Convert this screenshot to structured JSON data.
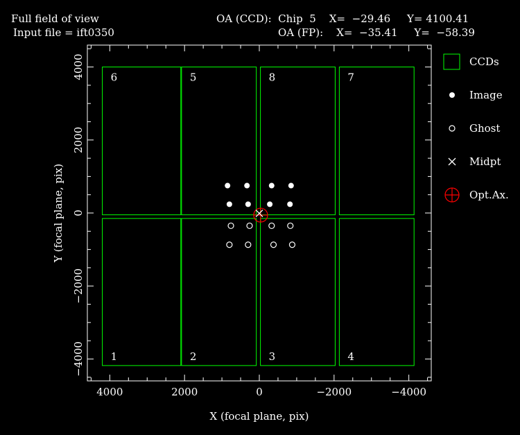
{
  "header": {
    "title": "Full field of view",
    "input_line": "Input file = ift0350",
    "oa_ccd_line": "OA (CCD):  Chip  5    X=  −29.46     Y= 4100.41",
    "oa_fp_line": "OA (FP):    X=  −35.41     Y=  −58.39"
  },
  "colors": {
    "background": "#000000",
    "ccd": "#00ff00",
    "axes": "#ffffff",
    "optical_axis": "#ff0000"
  },
  "chart_data": {
    "type": "scatter",
    "xlabel": "X (focal plane, pix)",
    "ylabel": "Y (focal plane, pix)",
    "xlim": [
      4600,
      -4600
    ],
    "ylim": [
      -4600,
      4600
    ],
    "xticks": [
      4000,
      2000,
      0,
      -2000,
      -4000
    ],
    "yticks": [
      -4000,
      -2000,
      0,
      2000,
      4000
    ],
    "xtick_labels": [
      "4000",
      "2000",
      "0",
      "−2000",
      "−4000"
    ],
    "ytick_labels": [
      "−4000",
      "−2000",
      "0",
      "2000",
      "4000"
    ],
    "ccds": [
      {
        "label": "6",
        "x": [
          4200,
          2100
        ],
        "y": [
          -50,
          4000
        ]
      },
      {
        "label": "5",
        "x": [
          2080,
          80
        ],
        "y": [
          -50,
          4000
        ]
      },
      {
        "label": "8",
        "x": [
          -30,
          -2030
        ],
        "y": [
          -50,
          4000
        ]
      },
      {
        "label": "7",
        "x": [
          -2140,
          -4140
        ],
        "y": [
          -50,
          4000
        ]
      },
      {
        "label": "1",
        "x": [
          4200,
          2100
        ],
        "y": [
          -4180,
          -150
        ]
      },
      {
        "label": "2",
        "x": [
          2080,
          80
        ],
        "y": [
          -4180,
          -150
        ]
      },
      {
        "label": "3",
        "x": [
          -30,
          -2030
        ],
        "y": [
          -4180,
          -150
        ]
      },
      {
        "label": "4",
        "x": [
          -2140,
          -4140
        ],
        "y": [
          -4180,
          -150
        ]
      }
    ],
    "series": [
      {
        "name": "Image",
        "marker": "filled-circle",
        "x": [
          850,
          330,
          -330,
          -850,
          800,
          300,
          -280,
          -820
        ],
        "y": [
          750,
          750,
          750,
          750,
          240,
          240,
          240,
          240
        ]
      },
      {
        "name": "Ghost",
        "marker": "open-circle",
        "x": [
          760,
          260,
          -330,
          -830,
          800,
          300,
          -380,
          -880
        ],
        "y": [
          -350,
          -350,
          -350,
          -350,
          -870,
          -870,
          -870,
          -870
        ]
      },
      {
        "name": "Midpt",
        "marker": "x",
        "x": [
          0
        ],
        "y": [
          -10
        ]
      },
      {
        "name": "Opt.Ax.",
        "marker": "circle-cross",
        "x": [
          -35.41
        ],
        "y": [
          -58.39
        ]
      }
    ],
    "legend": {
      "placement": "right",
      "items": [
        {
          "label": "CCDs",
          "symbol": "square"
        },
        {
          "label": "Image",
          "symbol": "filled-circle"
        },
        {
          "label": "Ghost",
          "symbol": "open-circle"
        },
        {
          "label": "Midpt",
          "symbol": "x"
        },
        {
          "label": "Opt.Ax.",
          "symbol": "circle-cross"
        }
      ]
    }
  }
}
